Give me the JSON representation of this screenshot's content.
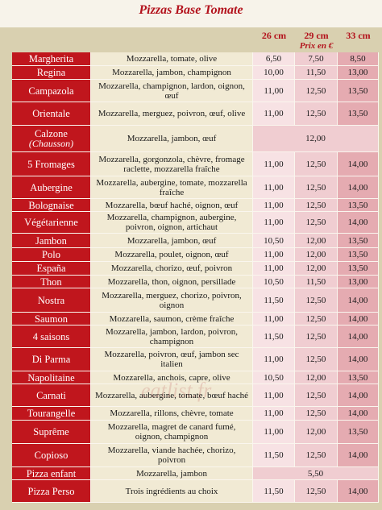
{
  "header": {
    "title": "Pizzas Base Tomate",
    "sizes": [
      "26 cm",
      "29 cm",
      "33 cm"
    ],
    "price_note": "Prix en €"
  },
  "rows": [
    {
      "name": "Margherita",
      "ingredients": "Mozzarella, tomate, olive",
      "prices": [
        "6,50",
        "7,50",
        "8,50"
      ]
    },
    {
      "name": "Regina",
      "ingredients": "Mozzarella, jambon, champignon",
      "prices": [
        "10,00",
        "11,50",
        "13,00"
      ]
    },
    {
      "name": "Campazola",
      "ingredients": "Mozzarella, champignon, lardon, oignon, œuf",
      "prices": [
        "11,00",
        "12,50",
        "13,50"
      ]
    },
    {
      "name": "Orientale",
      "ingredients": "Mozzarella, merguez, poivron, œuf, olive",
      "prices": [
        "11,00",
        "12,50",
        "13,50"
      ]
    },
    {
      "name": "Calzone",
      "note": "(Chausson)",
      "ingredients": "Mozzarella, jambon, œuf",
      "prices": [
        "12,00"
      ]
    },
    {
      "name": "5 Fromages",
      "ingredients": "Mozzarella, gorgonzola, chèvre, fromage raclette, mozzarella fraîche",
      "prices": [
        "11,00",
        "12,50",
        "14,00"
      ]
    },
    {
      "name": "Aubergine",
      "ingredients": "Mozzarella, aubergine, tomate, mozzarella fraîche",
      "prices": [
        "11,00",
        "12,50",
        "14,00"
      ]
    },
    {
      "name": "Bolognaise",
      "ingredients": "Mozzarella, bœuf haché, oignon, œuf",
      "prices": [
        "11,00",
        "12,50",
        "13,50"
      ]
    },
    {
      "name": "Végétarienne",
      "ingredients": "Mozzarella, champignon, aubergine, poivron, oignon, artichaut",
      "prices": [
        "11,00",
        "12,50",
        "14,00"
      ]
    },
    {
      "name": "Jambon",
      "ingredients": "Mozzarella, jambon, œuf",
      "prices": [
        "10,50",
        "12,00",
        "13,50"
      ]
    },
    {
      "name": "Polo",
      "ingredients": "Mozzarella, poulet, oignon, œuf",
      "prices": [
        "11,00",
        "12,00",
        "13,50"
      ]
    },
    {
      "name": "España",
      "ingredients": "Mozzarella, chorizo, œuf, poivron",
      "prices": [
        "11,00",
        "12,00",
        "13,50"
      ]
    },
    {
      "name": "Thon",
      "ingredients": "Mozzarella, thon, oignon, persillade",
      "prices": [
        "10,50",
        "11,50",
        "13,00"
      ]
    },
    {
      "name": "Nostra",
      "ingredients": "Mozzarella, merguez, chorizo, poivron, oignon",
      "prices": [
        "11,50",
        "12,50",
        "14,00"
      ]
    },
    {
      "name": "Saumon",
      "ingredients": "Mozzarella, saumon, crème fraîche",
      "prices": [
        "11,00",
        "12,50",
        "14,00"
      ]
    },
    {
      "name": "4 saisons",
      "ingredients": "Mozzarella, jambon, lardon, poivron, champignon",
      "prices": [
        "11,50",
        "12,50",
        "14,00"
      ]
    },
    {
      "name": "Di Parma",
      "ingredients": "Mozzarella, poivron, œuf, jambon sec italien",
      "prices": [
        "11,00",
        "12,50",
        "14,00"
      ]
    },
    {
      "name": "Napolitaine",
      "ingredients": "Mozzarella, anchois, capre, olive",
      "prices": [
        "10,50",
        "12,00",
        "13,50"
      ]
    },
    {
      "name": "Carnati",
      "ingredients": "Mozzarella, aubergine, tomate, bœuf haché",
      "prices": [
        "11,00",
        "12,50",
        "14,00"
      ]
    },
    {
      "name": "Tourangelle",
      "ingredients": "Mozzarella, rillons, chèvre, tomate",
      "prices": [
        "11,00",
        "12,50",
        "14,00"
      ]
    },
    {
      "name": "Suprême",
      "ingredients": "Mozzarella, magret de canard fumé, oignon, champignon",
      "prices": [
        "11,00",
        "12,00",
        "13,50"
      ]
    },
    {
      "name": "Copioso",
      "ingredients": "Mozzarella, viande hachée, chorizo, poivron",
      "prices": [
        "11,50",
        "12,50",
        "14,00"
      ]
    },
    {
      "name": "Pizza enfant",
      "ingredients": "Mozzarella, jambon",
      "prices": [
        "5,50"
      ]
    },
    {
      "name": "Pizza Perso",
      "ingredients": "Trois ingrédients au choix",
      "prices": [
        "11,50",
        "12,50",
        "14,00"
      ]
    }
  ],
  "watermark": "eatlist.fr"
}
